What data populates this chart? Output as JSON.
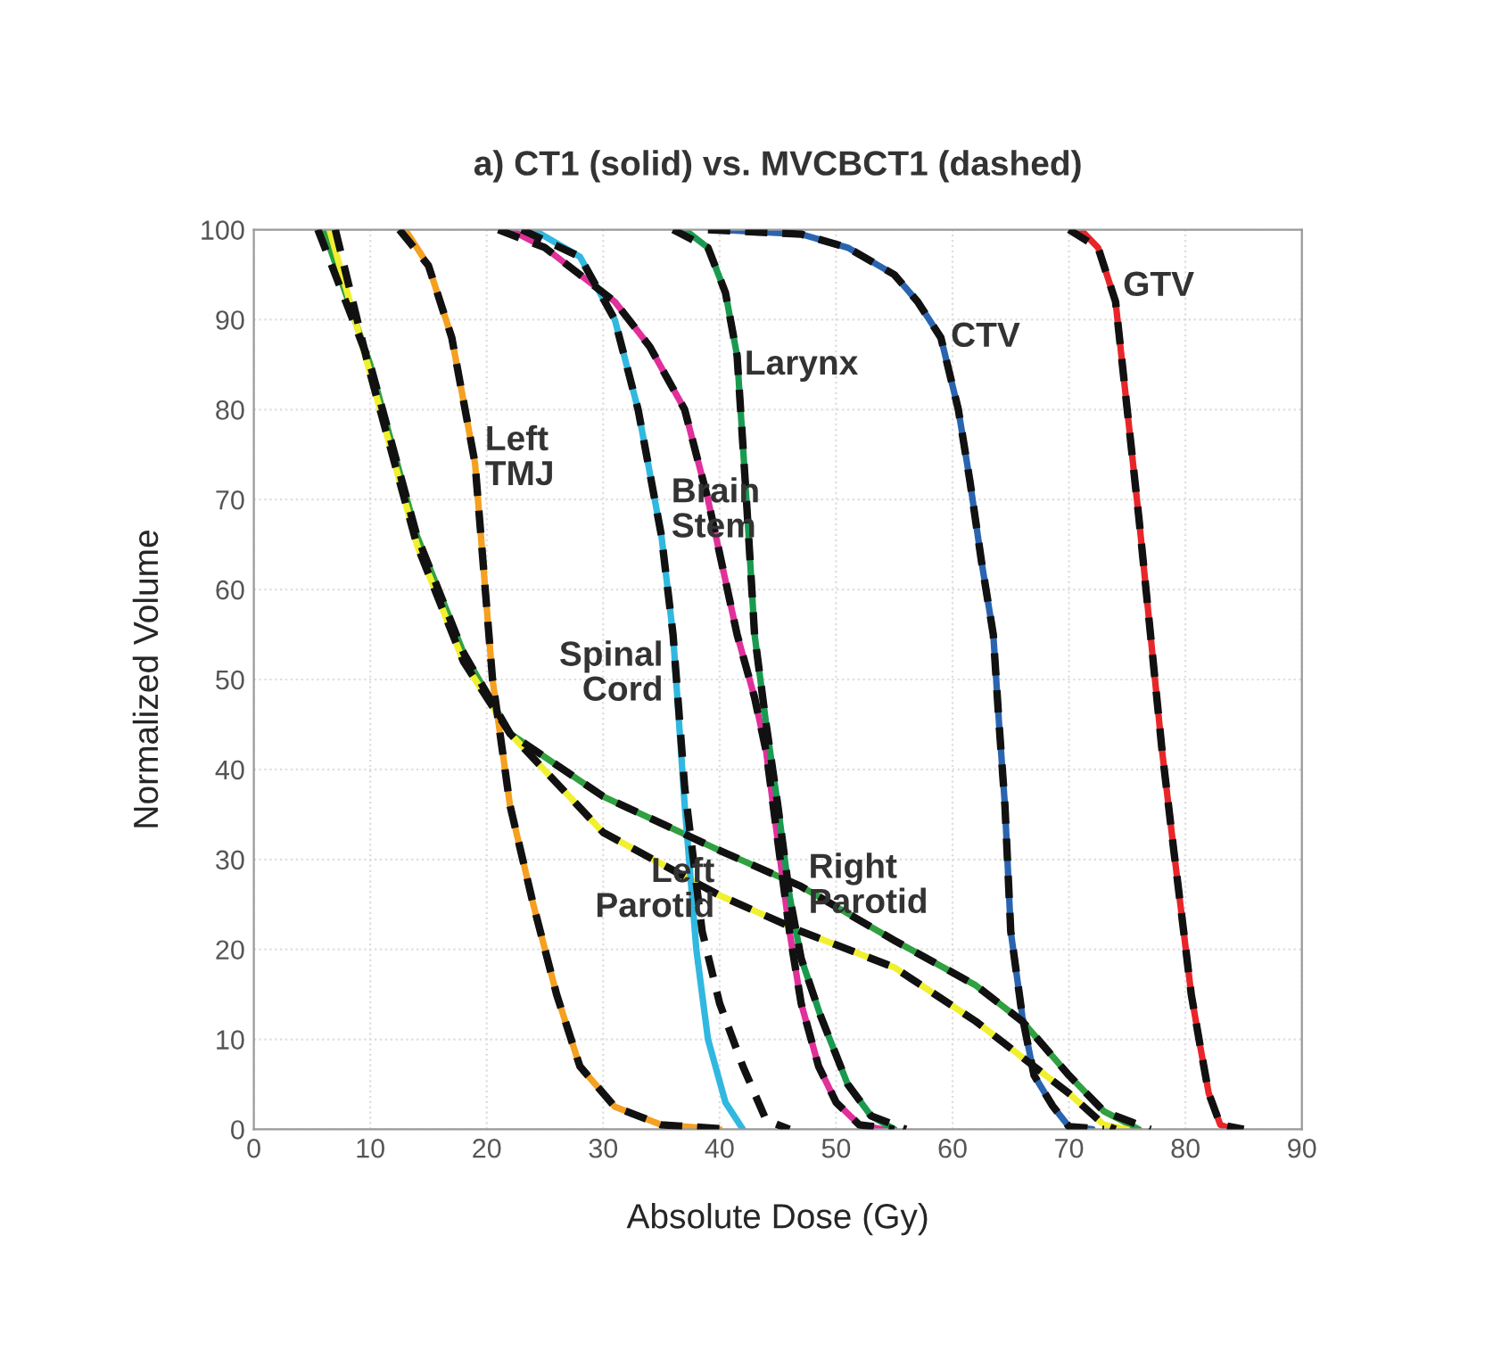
{
  "chart_data": {
    "type": "line",
    "title": "a) CT1 (solid) vs. MVCBCT1 (dashed)",
    "xlabel": "Absolute Dose (Gy)",
    "ylabel": "Normalized Volume",
    "xlim": [
      0,
      90
    ],
    "ylim": [
      0,
      100
    ],
    "xticks": [
      0,
      10,
      20,
      30,
      40,
      50,
      60,
      70,
      80,
      90
    ],
    "yticks": [
      0,
      10,
      20,
      30,
      40,
      50,
      60,
      70,
      80,
      90,
      100
    ],
    "grid": true,
    "marker": "none",
    "series": [
      {
        "color": "#30a040",
        "line_style": "solid",
        "x": [
          6,
          10,
          14,
          18,
          22,
          30,
          40,
          47,
          55,
          62,
          66,
          70,
          73,
          76
        ],
        "values": [
          100,
          85,
          66,
          53,
          44,
          37,
          31,
          27,
          21,
          16,
          12,
          6,
          2,
          0
        ]
      },
      {
        "color": "#f0f030",
        "line_style": "solid",
        "x": [
          6.5,
          10,
          14,
          18,
          22,
          30,
          40,
          47,
          55,
          62,
          70,
          73,
          75
        ],
        "values": [
          100,
          84,
          65,
          52,
          44,
          33,
          26,
          22,
          18,
          12,
          4,
          0.5,
          0
        ]
      },
      {
        "color": "#f4a020",
        "line_style": "solid",
        "x": [
          13,
          15,
          17,
          19,
          20.5,
          22,
          24,
          26,
          28,
          31,
          35,
          40
        ],
        "values": [
          100,
          96,
          88,
          74,
          50,
          36,
          25,
          15,
          7,
          2.5,
          0.5,
          0
        ]
      },
      {
        "color": "#30b8e0",
        "line_style": "solid",
        "x": [
          24,
          28,
          31,
          33,
          35,
          36,
          37,
          38,
          39,
          40.5,
          42
        ],
        "values": [
          100,
          97,
          90,
          80,
          66,
          55,
          36,
          20,
          10,
          3,
          0
        ]
      },
      {
        "color": "#e0309a",
        "line_style": "solid",
        "x": [
          22,
          25,
          28,
          31,
          34,
          37,
          39,
          41.5,
          43,
          44,
          45,
          46,
          47,
          48.5,
          50,
          52,
          54
        ],
        "values": [
          100,
          98,
          95,
          92,
          87,
          80,
          70,
          55,
          48,
          42,
          32,
          22,
          14,
          7,
          3,
          0.5,
          0
        ]
      },
      {
        "color": "#1a9a50",
        "line_style": "solid",
        "x": [
          37,
          39,
          40.5,
          41.5,
          42.3,
          43,
          44,
          45,
          46,
          47,
          48.7,
          51,
          53,
          55
        ],
        "values": [
          100,
          98,
          93,
          86,
          70,
          55,
          45,
          36,
          26,
          19,
          12.5,
          5,
          1.5,
          0
        ]
      },
      {
        "color": "#2a64b0",
        "line_style": "solid",
        "x": [
          40,
          47,
          51,
          55,
          57,
          59,
          60.5,
          61.5,
          62.5,
          63.5,
          64,
          64.5,
          65,
          66,
          67,
          68.6,
          70,
          72
        ],
        "values": [
          100,
          99.5,
          98,
          95,
          92,
          88,
          80,
          72,
          63,
          55,
          45,
          36,
          22,
          12.5,
          6,
          2.6,
          0.3,
          0
        ]
      },
      {
        "color": "#e8262a",
        "line_style": "solid",
        "x": [
          71,
          72.5,
          74,
          75,
          76,
          77,
          78,
          79,
          79.8,
          80.5,
          81.3,
          82,
          83,
          84
        ],
        "values": [
          100,
          98,
          92,
          80,
          68,
          55,
          42,
          31,
          22.5,
          15,
          9,
          4,
          0.5,
          0
        ]
      },
      {
        "color": "#111111",
        "line_style": "dashed",
        "x": [
          5.5,
          10,
          14,
          18,
          22,
          30,
          40,
          47,
          55,
          62,
          66,
          70,
          73,
          77
        ],
        "values": [
          100,
          85,
          66,
          53,
          44,
          37,
          31,
          27,
          21,
          16,
          12,
          6,
          2,
          0
        ]
      },
      {
        "color": "#111111",
        "line_style": "dashed",
        "x": [
          7,
          10,
          14,
          18,
          22,
          30,
          40,
          47,
          55,
          62,
          70,
          73,
          74
        ],
        "values": [
          100,
          84,
          65,
          52,
          44,
          33,
          26,
          22,
          18,
          12,
          4,
          0.5,
          0
        ]
      },
      {
        "color": "#111111",
        "line_style": "dashed",
        "x": [
          12.5,
          15,
          17,
          19,
          20.5,
          22,
          24,
          26,
          28,
          31,
          35,
          41
        ],
        "values": [
          100,
          96,
          88,
          74,
          50,
          36,
          25,
          15,
          7,
          2.5,
          0.5,
          0
        ]
      },
      {
        "color": "#111111",
        "line_style": "dashed",
        "x": [
          23,
          28,
          31,
          33,
          35,
          36,
          37,
          38.5,
          40,
          42,
          44,
          46
        ],
        "values": [
          100,
          97,
          90,
          80,
          66,
          55,
          38,
          22,
          14,
          7,
          1,
          0
        ]
      },
      {
        "color": "#111111",
        "line_style": "dashed",
        "x": [
          21,
          25,
          28,
          31,
          34,
          37,
          39,
          41.5,
          43,
          44,
          45,
          46,
          47,
          48.5,
          50,
          52,
          55
        ],
        "values": [
          100,
          98,
          95,
          92,
          87,
          80,
          70,
          55,
          48,
          42,
          32,
          22,
          14,
          7,
          3,
          0.5,
          0
        ]
      },
      {
        "color": "#111111",
        "line_style": "dashed",
        "x": [
          36,
          39,
          40.5,
          41.5,
          42.3,
          43,
          44,
          45,
          46,
          47,
          48.7,
          51,
          53,
          56
        ],
        "values": [
          100,
          98,
          93,
          86,
          70,
          55,
          45,
          36,
          26,
          19,
          12.5,
          5,
          1.5,
          0
        ]
      },
      {
        "color": "#111111",
        "line_style": "dashed",
        "x": [
          39,
          47,
          51,
          55,
          57,
          59,
          60.5,
          61.5,
          62.5,
          63.5,
          64,
          64.5,
          65,
          66,
          67,
          68.6,
          70,
          73
        ],
        "values": [
          100,
          99.5,
          98,
          95,
          92,
          88,
          80,
          72,
          63,
          55,
          45,
          36,
          22,
          12.5,
          6,
          2.6,
          0.3,
          0
        ]
      },
      {
        "color": "#111111",
        "line_style": "dashed",
        "x": [
          70,
          72.5,
          74,
          75,
          76,
          77,
          78,
          79,
          79.8,
          80.5,
          81.3,
          82,
          83,
          85
        ],
        "values": [
          100,
          98,
          92,
          80,
          68,
          55,
          42,
          31,
          22.5,
          15,
          9,
          4,
          0.5,
          0
        ]
      }
    ],
    "annotations": [
      {
        "text": "GTV",
        "x": 74,
        "y": 92
      },
      {
        "text": "CTV",
        "x": 59,
        "y": 88
      },
      {
        "text": "Larynx",
        "x": 41.5,
        "y": 86
      },
      {
        "text": "Left\nTMJ",
        "x": 19,
        "y": 74
      },
      {
        "text": "Brain\nStem",
        "x": 35,
        "y": 66
      },
      {
        "text": "Spinal\nCord",
        "x": 36,
        "y": 55
      },
      {
        "text": "Left\nParotid",
        "x": 40,
        "y": 26
      },
      {
        "text": "Right\nParotid",
        "x": 47,
        "y": 27
      }
    ]
  }
}
